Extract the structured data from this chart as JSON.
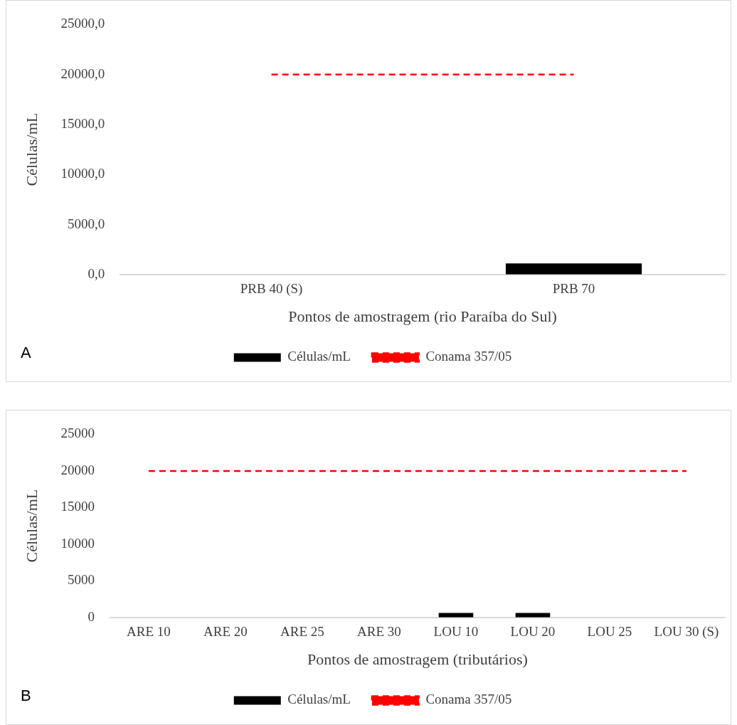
{
  "chart_data": [
    {
      "type": "bar",
      "categories": [
        "PRB 40 (S)",
        "PRB 70"
      ],
      "xlabel": "Pontos de amostragem (rio Paraíba do Sul)",
      "ylabel": "Células/mL",
      "ylim": [
        0,
        25000
      ],
      "yticks": [
        {
          "value": 0,
          "label": "0,0"
        },
        {
          "value": 5000,
          "label": "5000,0"
        },
        {
          "value": 10000,
          "label": "10000,0"
        },
        {
          "value": 15000,
          "label": "15000,0"
        },
        {
          "value": 20000,
          "label": "20000,0"
        },
        {
          "value": 25000,
          "label": "25000,0"
        }
      ],
      "grid": false,
      "legend": "bottom",
      "annotations": [
        "A"
      ],
      "series": [
        {
          "name": "Células/mL",
          "color": "#000000",
          "values": [
            0,
            1100
          ]
        },
        {
          "name": "Conama 357/05",
          "type": "line",
          "color": "#ff0000",
          "line_style": "dashed",
          "marker": "none",
          "values": [
            20000,
            20000
          ]
        }
      ]
    },
    {
      "type": "bar",
      "categories": [
        "ARE 10",
        "ARE 20",
        "ARE 25",
        "ARE 30",
        "LOU 10",
        "LOU 20",
        "LOU 25",
        "LOU 30 (S)"
      ],
      "xlabel": "Pontos de amostragem (tributários)",
      "ylabel": "Células/mL",
      "ylim": [
        0,
        25000
      ],
      "yticks": [
        0,
        5000,
        10000,
        15000,
        20000,
        25000
      ],
      "grid": false,
      "legend": "bottom",
      "annotations": [
        "B"
      ],
      "series": [
        {
          "name": "Células/mL",
          "color": "#000000",
          "values": [
            0,
            0,
            0,
            0,
            600,
            600,
            0,
            0
          ]
        },
        {
          "name": "Conama 357/05",
          "type": "line",
          "color": "#ff0000",
          "line_style": "dashed",
          "marker": "none",
          "values": [
            20000,
            20000,
            20000,
            20000,
            20000,
            20000,
            20000,
            20000
          ]
        }
      ]
    }
  ]
}
